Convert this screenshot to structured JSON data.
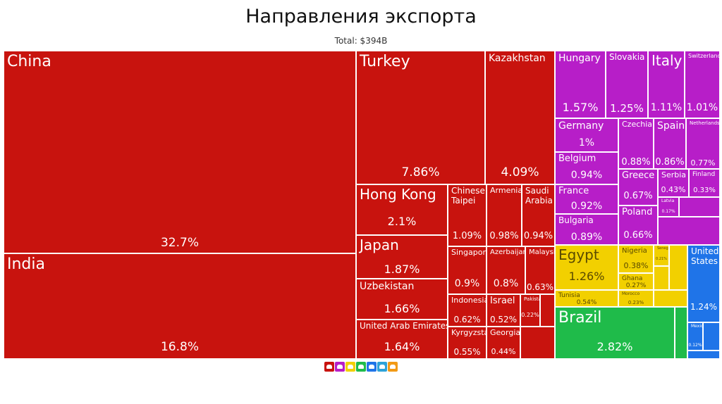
{
  "header": {
    "title": "Направления экспорта",
    "subtitle": "Total: $394B"
  },
  "colors": {
    "asia": "#c8130e",
    "europe": "#b71ec8",
    "africa": "#f2d000",
    "south_america": "#1fbb4a",
    "north_america": "#1f74e8",
    "oceania": "#2ea2d8"
  },
  "legend": {
    "icons": [
      "asia-icon",
      "europe-icon",
      "africa-icon",
      "south-america-icon",
      "north-america-icon",
      "oceania-icon",
      "other-icon"
    ],
    "colors": [
      "#c8130e",
      "#b71ec8",
      "#f2d000",
      "#1fbb4a",
      "#1f74e8",
      "#2ea2d8",
      "#f29a16"
    ]
  },
  "chart_data": {
    "type": "treemap",
    "title": "Направления экспорта",
    "subtitle": "Total: $394B",
    "tiles": [
      {
        "name": "China",
        "value": "32.7%",
        "region": "asia"
      },
      {
        "name": "India",
        "value": "16.8%",
        "region": "asia"
      },
      {
        "name": "Turkey",
        "value": "7.86%",
        "region": "asia"
      },
      {
        "name": "Kazakhstan",
        "value": "4.09%",
        "region": "asia"
      },
      {
        "name": "Hong Kong",
        "value": "2.1%",
        "region": "asia"
      },
      {
        "name": "Japan",
        "value": "1.87%",
        "region": "asia"
      },
      {
        "name": "Uzbekistan",
        "value": "1.66%",
        "region": "asia"
      },
      {
        "name": "United Arab Emirates",
        "value": "1.64%",
        "region": "asia"
      },
      {
        "name": "Chinese Taipei",
        "value": "1.09%",
        "region": "asia"
      },
      {
        "name": "Armenia",
        "value": "0.98%",
        "region": "asia"
      },
      {
        "name": "Saudi Arabia",
        "value": "0.94%",
        "region": "asia"
      },
      {
        "name": "Singapore",
        "value": "0.9%",
        "region": "asia"
      },
      {
        "name": "Azerbaijan",
        "value": "0.8%",
        "region": "asia"
      },
      {
        "name": "Malaysia",
        "value": "0.63%",
        "region": "asia"
      },
      {
        "name": "Indonesia",
        "value": "0.62%",
        "region": "asia"
      },
      {
        "name": "Israel",
        "value": "0.52%",
        "region": "asia"
      },
      {
        "name": "Kyrgyzstan",
        "value": "0.55%",
        "region": "asia"
      },
      {
        "name": "Georgia",
        "value": "0.44%",
        "region": "asia"
      },
      {
        "name": "Pakistan",
        "value": "0.22%",
        "region": "asia"
      },
      {
        "name": "Hungary",
        "value": "1.57%",
        "region": "europe"
      },
      {
        "name": "Slovakia",
        "value": "1.25%",
        "region": "europe"
      },
      {
        "name": "Italy",
        "value": "1.11%",
        "region": "europe"
      },
      {
        "name": "Switzerland",
        "value": "1.01%",
        "region": "europe"
      },
      {
        "name": "Germany",
        "value": "1%",
        "region": "europe"
      },
      {
        "name": "Czechia",
        "value": "0.88%",
        "region": "europe"
      },
      {
        "name": "Spain",
        "value": "0.86%",
        "region": "europe"
      },
      {
        "name": "Netherlands",
        "value": "0.77%",
        "region": "europe"
      },
      {
        "name": "Belgium",
        "value": "0.94%",
        "region": "europe"
      },
      {
        "name": "France",
        "value": "0.92%",
        "region": "europe"
      },
      {
        "name": "Greece",
        "value": "0.67%",
        "region": "europe"
      },
      {
        "name": "Serbia",
        "value": "0.43%",
        "region": "europe"
      },
      {
        "name": "Finland",
        "value": "0.33%",
        "region": "europe"
      },
      {
        "name": "Latvia",
        "value": "0.17%",
        "region": "europe"
      },
      {
        "name": "Bulgaria",
        "value": "0.89%",
        "region": "europe"
      },
      {
        "name": "Poland",
        "value": "0.66%",
        "region": "europe"
      },
      {
        "name": "Egypt",
        "value": "1.26%",
        "region": "africa"
      },
      {
        "name": "Nigeria",
        "value": "0.38%",
        "region": "africa"
      },
      {
        "name": "Senegal",
        "value": "0.21%",
        "region": "africa"
      },
      {
        "name": "Ghana",
        "value": "0.27%",
        "region": "africa"
      },
      {
        "name": "Tunisia",
        "value": "0.54%",
        "region": "africa"
      },
      {
        "name": "Morocco",
        "value": "0.23%",
        "region": "africa"
      },
      {
        "name": "Brazil",
        "value": "2.82%",
        "region": "south_america"
      },
      {
        "name": "United States",
        "value": "1.24%",
        "region": "north_america"
      },
      {
        "name": "Mexico",
        "value": "0.12%",
        "region": "north_america"
      }
    ]
  }
}
